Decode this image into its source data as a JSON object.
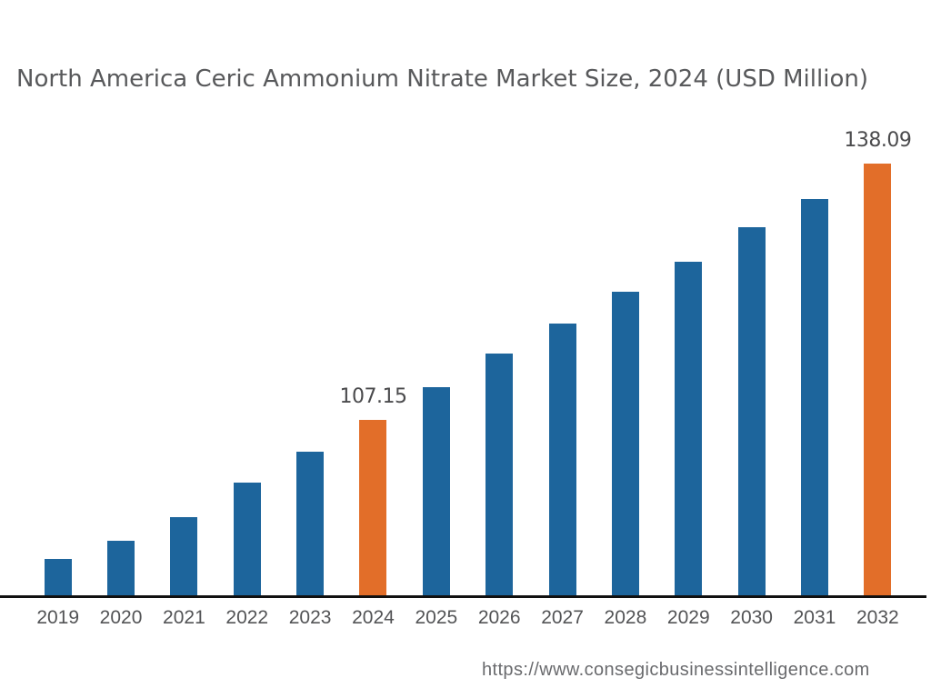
{
  "title": "North America Ceric Ammonium Nitrate Market Size, 2024 (USD Million)",
  "footer": {
    "url_text": "https://www.consegicbusinessintelligence.com"
  },
  "colors": {
    "bar_default": "#1d659c",
    "bar_highlight": "#e26e29",
    "axis": "#101010",
    "title_text": "#58595b",
    "value_label_text": "#4b4b4d",
    "tick_label_text": "#535456",
    "footer_text": "#6a6b6e"
  },
  "chart_data": {
    "type": "bar",
    "title": "North America Ceric Ammonium Nitrate Market Size, 2024 (USD Million)",
    "categories": [
      "2019",
      "2020",
      "2021",
      "2022",
      "2023",
      "2024",
      "2025",
      "2026",
      "2027",
      "2028",
      "2029",
      "2030",
      "2031",
      "2032"
    ],
    "values": [
      90.4,
      92.6,
      95.4,
      99.6,
      103.3,
      107.15,
      111.1,
      115.2,
      118.8,
      122.6,
      126.2,
      130.4,
      133.8,
      138.09
    ],
    "labeled_points": {
      "2024": "107.15",
      "2032": "138.09"
    },
    "highlighted_categories": [
      "2024",
      "2032"
    ],
    "xlabel": "",
    "ylabel": "",
    "ylim": [
      85.9,
      138.09
    ],
    "grid": false,
    "legend": false,
    "baseline_axis": true
  }
}
